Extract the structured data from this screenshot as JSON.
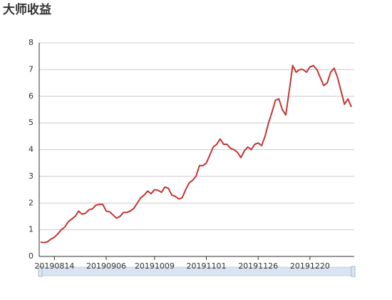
{
  "chart_data": {
    "type": "line",
    "title": "大师收益",
    "categories": [
      null,
      null,
      null,
      null,
      "20190814",
      null,
      null,
      null,
      null,
      null,
      null,
      null,
      null,
      null,
      null,
      null,
      null,
      null,
      null,
      "20190906",
      null,
      null,
      null,
      null,
      null,
      null,
      null,
      null,
      null,
      null,
      null,
      null,
      null,
      "20191009",
      null,
      null,
      null,
      null,
      null,
      null,
      null,
      null,
      null,
      null,
      null,
      null,
      null,
      null,
      "20191101",
      null,
      null,
      null,
      null,
      null,
      null,
      null,
      null,
      null,
      null,
      null,
      null,
      null,
      null,
      "20191126",
      null,
      null,
      null,
      null,
      null,
      null,
      null,
      null,
      null,
      null,
      null,
      null,
      null,
      null,
      "20191220",
      null,
      null,
      null,
      null,
      null,
      null,
      null,
      null,
      null,
      null,
      null,
      null
    ],
    "series": [
      {
        "name": "大师收益",
        "color": "#c23531",
        "values": [
          0.53,
          0.52,
          0.55,
          0.65,
          0.72,
          0.85,
          1.0,
          1.1,
          1.3,
          1.4,
          1.5,
          1.7,
          1.58,
          1.62,
          1.75,
          1.78,
          1.92,
          1.95,
          1.95,
          1.7,
          1.67,
          1.55,
          1.43,
          1.5,
          1.65,
          1.65,
          1.7,
          1.8,
          2.0,
          2.2,
          2.3,
          2.45,
          2.35,
          2.5,
          2.48,
          2.4,
          2.6,
          2.55,
          2.3,
          2.25,
          2.15,
          2.2,
          2.5,
          2.75,
          2.85,
          3.0,
          3.4,
          3.4,
          3.5,
          3.8,
          4.1,
          4.2,
          4.4,
          4.2,
          4.2,
          4.05,
          4.0,
          3.9,
          3.7,
          3.95,
          4.1,
          4.0,
          4.2,
          4.25,
          4.15,
          4.5,
          5.0,
          5.4,
          5.85,
          5.9,
          5.5,
          5.3,
          6.2,
          7.15,
          6.9,
          7.0,
          7.0,
          6.9,
          7.1,
          7.15,
          7.0,
          6.7,
          6.4,
          6.5,
          6.9,
          7.05,
          6.7,
          6.2,
          5.7,
          5.9,
          5.6
        ]
      }
    ],
    "ylim": [
      0,
      8
    ],
    "yticks": [
      0,
      1,
      2,
      3,
      4,
      5,
      6,
      7,
      8
    ],
    "grid": true
  }
}
